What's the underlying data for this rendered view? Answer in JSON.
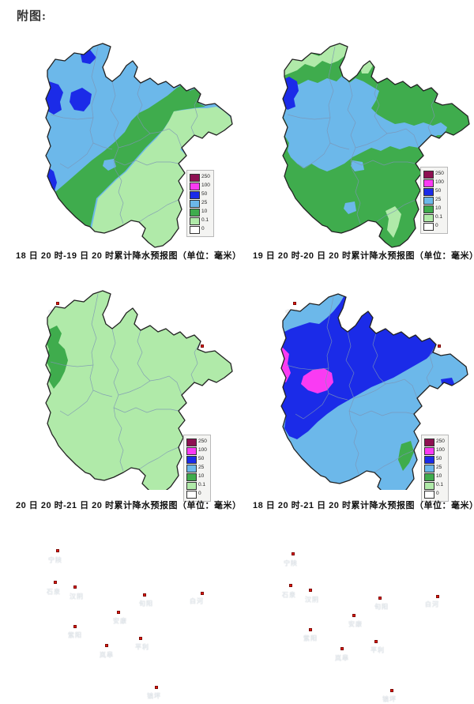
{
  "header": {
    "title": "附图:"
  },
  "legend": {
    "values": [
      "250",
      "100",
      "50",
      "25",
      "10",
      "0.1",
      "0"
    ],
    "colors": [
      "#8e1152",
      "#fa3bf3",
      "#1b2be8",
      "#6cb8ea",
      "#3fac4d",
      "#b0eaa9",
      "#ffffff"
    ]
  },
  "levels": {
    "250": "#8e1152",
    "100": "#fa3bf3",
    "50": "#1b2be8",
    "25": "#6cb8ea",
    "10": "#3fac4d",
    "0.1": "#b0eaa9",
    "0": "#ffffff"
  },
  "colors": {
    "city_marker": "#e3170d",
    "map_outline": "#222222",
    "county_border": "#7c94b5"
  },
  "cities": {
    "ningshan": "宁陕",
    "shiquan": "石泉",
    "hanyin": "汉阴",
    "ziyang": "紫阳",
    "ankang": "安康",
    "xunyang": "旬阳",
    "baihe": "白河",
    "langao": "岚皋",
    "pingli": "平利",
    "zhenping": "镇坪"
  },
  "maps": [
    {
      "id": "map1",
      "caption": "18 日 20 时-19 日 20 时累计降水预报图（单位：毫米）",
      "base_level": "25",
      "overlay_levels": [
        "10",
        "0.1",
        "50",
        "50",
        "50",
        "50",
        "25"
      ]
    },
    {
      "id": "map2",
      "caption": "19 日 20 时-20 日 20 时累计降水预报图（单位：毫米）",
      "base_level": "10",
      "overlay_levels": [
        "0.1",
        "0.1",
        "25",
        "50",
        "25",
        "25",
        "0.1",
        "0.1"
      ]
    },
    {
      "id": "map3",
      "caption": "20 日 20 时-21 日 20 时累计降水预报图（单位：毫米）",
      "base_level": "0.1",
      "overlay_levels": [
        "10"
      ]
    },
    {
      "id": "map4",
      "caption": "18 日 20 时-21 日 20 时累计降水预报图（单位：毫米）",
      "base_level": "25",
      "overlay_levels": [
        "50",
        "100",
        "100",
        "50",
        "10"
      ]
    }
  ]
}
